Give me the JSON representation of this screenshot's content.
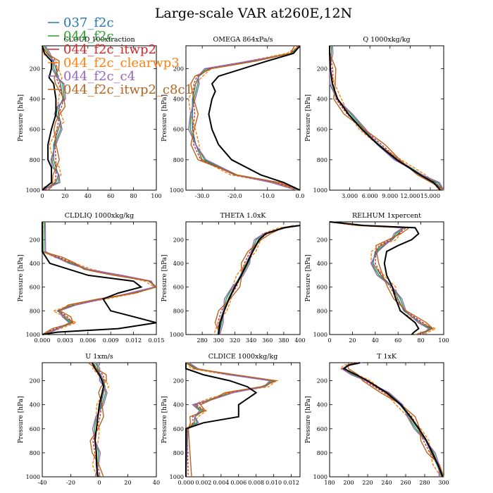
{
  "title": "Large-scale VAR at260E,12N",
  "legend": [
    {
      "label": "037_f2c",
      "color": "#1f77b4"
    },
    {
      "label": "044_f2c",
      "color": "#2ca02c"
    },
    {
      "label": "044_f2c_itwp2",
      "color": "#d62728"
    },
    {
      "label": "044_f2c_clearwp3",
      "color": "#ff7f0e"
    },
    {
      "label": "044_f2c_c4",
      "color": "#9467bd"
    },
    {
      "label": "044_f2c_itwp2_c8c1",
      "color": "#b5651d"
    }
  ],
  "obs_color": "#000000",
  "chart_data": [
    {
      "type": "line",
      "title": "CLOUD 100xfraction",
      "ylabel": "Pressure [hPa]",
      "xlim": [
        0,
        100
      ],
      "ylim": [
        1000,
        50
      ],
      "xticks": [
        {
          "v": 0,
          "t": "0"
        },
        {
          "v": 20,
          "t": "20"
        },
        {
          "v": 40,
          "t": "40"
        },
        {
          "v": 60,
          "t": "60"
        },
        {
          "v": 80,
          "t": "80"
        },
        {
          "v": 100,
          "t": "100"
        }
      ],
      "yticks": [
        200,
        400,
        600,
        800,
        1000
      ],
      "obs": {
        "p": [
          50,
          100,
          150,
          200,
          260,
          300,
          400,
          500,
          550,
          600,
          700,
          800,
          850,
          900,
          950,
          980,
          1000
        ],
        "x": [
          0,
          2,
          8,
          8,
          6,
          10,
          12,
          12,
          10,
          8,
          5,
          5,
          8,
          8,
          8,
          3,
          0
        ]
      },
      "series": [
        {
          "p": [
            50,
            100,
            150,
            200,
            260,
            300,
            400,
            450,
            500,
            550,
            600,
            700,
            800,
            850,
            900,
            950,
            980,
            1000
          ],
          "x": [
            0,
            4,
            10,
            12,
            14,
            16,
            18,
            15,
            14,
            16,
            14,
            10,
            10,
            12,
            14,
            12,
            5,
            0
          ]
        }
      ]
    },
    {
      "type": "line",
      "title": "OMEGA  864xPa/s",
      "ylabel": "Pressure [hPa]",
      "xlim": [
        -35,
        0
      ],
      "ylim": [
        1000,
        50
      ],
      "xticks": [
        {
          "v": -30,
          "t": "-30.0"
        },
        {
          "v": -20,
          "t": "-20.0"
        },
        {
          "v": -10,
          "t": "-10.0"
        },
        {
          "v": 0,
          "t": "0.0"
        }
      ],
      "yticks": [
        200,
        400,
        600,
        800,
        1000
      ],
      "obs": {
        "p": [
          50,
          100,
          150,
          250,
          300,
          350,
          400,
          500,
          600,
          700,
          800,
          900,
          950,
          1000
        ],
        "x": [
          0,
          -2,
          -10,
          -25,
          -27,
          -26,
          -27,
          -28,
          -27,
          -25,
          -21,
          -12,
          -5,
          0
        ]
      },
      "series": [
        {
          "p": [
            50,
            100,
            150,
            200,
            250,
            300,
            400,
            500,
            600,
            700,
            800,
            900,
            950,
            1000
          ],
          "x": [
            0,
            -3,
            -15,
            -28,
            -31,
            -32,
            -33,
            -33,
            -33,
            -32,
            -30,
            -20,
            -8,
            0
          ]
        }
      ]
    },
    {
      "type": "line",
      "title": "Q  1000xkg/kg",
      "ylabel": "Pressure [hPa]",
      "xlim": [
        0,
        17
      ],
      "ylim": [
        1000,
        50
      ],
      "xticks": [
        {
          "v": 3,
          "t": "3.000"
        },
        {
          "v": 6,
          "t": "6.000"
        },
        {
          "v": 9,
          "t": "9.000"
        },
        {
          "v": 12,
          "t": "12.000"
        },
        {
          "v": 15,
          "t": "15.000"
        }
      ],
      "yticks": [
        200,
        400,
        600,
        800,
        1000
      ],
      "obs": {
        "p": [
          50,
          100,
          200,
          300,
          400,
          500,
          600,
          700,
          800,
          900,
          950,
          1000
        ],
        "x": [
          0,
          0,
          0.1,
          0.4,
          1.2,
          2.8,
          4.8,
          7.2,
          10,
          13.5,
          15.5,
          16.5
        ]
      },
      "series": [
        {
          "p": [
            50,
            100,
            200,
            300,
            400,
            500,
            600,
            700,
            800,
            900,
            950,
            1000
          ],
          "x": [
            0,
            0,
            0.1,
            0.4,
            1.2,
            2.9,
            5.0,
            7.4,
            10.2,
            13.8,
            15.8,
            16.8
          ]
        }
      ]
    },
    {
      "type": "line",
      "title": "CLDLIQ  1000xkg/kg",
      "ylabel": "Pressure [hPa]",
      "xlim": [
        0,
        0.015
      ],
      "ylim": [
        1000,
        50
      ],
      "xticks": [
        {
          "v": 0,
          "t": "0.000"
        },
        {
          "v": 0.003,
          "t": "0.003"
        },
        {
          "v": 0.006,
          "t": "0.006"
        },
        {
          "v": 0.009,
          "t": "0.009"
        },
        {
          "v": 0.012,
          "t": "0.012"
        },
        {
          "v": 0.015,
          "t": "0.015"
        }
      ],
      "yticks": [
        200,
        400,
        600,
        800,
        1000
      ],
      "obs": {
        "p": [
          50,
          300,
          400,
          500,
          550,
          600,
          650,
          700,
          800,
          850,
          900,
          950,
          980,
          1000
        ],
        "x": [
          0,
          0,
          0.001,
          0.006,
          0.012,
          0.013,
          0.01,
          0.008,
          0.009,
          0.012,
          0.015,
          0.01,
          0.002,
          0
        ]
      },
      "series": [
        {
          "p": [
            50,
            300,
            350,
            400,
            450,
            500,
            550,
            600,
            650,
            700,
            750,
            800,
            850,
            900,
            950,
            1000
          ],
          "x": [
            0,
            0,
            0.002,
            0.004,
            0.006,
            0.01,
            0.014,
            0.015,
            0.012,
            0.008,
            0.004,
            0.002,
            0.003,
            0.004,
            0.002,
            0
          ]
        }
      ]
    },
    {
      "type": "line",
      "title": "THETA  1.0xK",
      "ylabel": "Pressure [hPa]",
      "xlim": [
        260,
        400
      ],
      "ylim": [
        1000,
        50
      ],
      "xticks": [
        {
          "v": 280,
          "t": "280"
        },
        {
          "v": 300,
          "t": "300"
        },
        {
          "v": 320,
          "t": "320"
        },
        {
          "v": 340,
          "t": "340"
        },
        {
          "v": 360,
          "t": "360"
        },
        {
          "v": 380,
          "t": "380"
        },
        {
          "v": 400,
          "t": "400"
        }
      ],
      "yticks": [
        200,
        400,
        600,
        800,
        1000
      ],
      "obs": {
        "p": [
          80,
          100,
          150,
          200,
          300,
          400,
          500,
          600,
          700,
          800,
          900,
          1000
        ],
        "x": [
          400,
          380,
          358,
          350,
          342,
          335,
          328,
          320,
          313,
          307,
          302,
          300
        ]
      },
      "series": [
        {
          "p": [
            80,
            100,
            150,
            200,
            300,
            400,
            500,
            600,
            700,
            800,
            900,
            1000
          ],
          "x": [
            399,
            379,
            357,
            349,
            341,
            334,
            327,
            319,
            312,
            306,
            301,
            299
          ]
        }
      ]
    },
    {
      "type": "line",
      "title": "RELHUM  1xpercent",
      "ylabel": "Pressure [hPa]",
      "xlim": [
        0,
        100
      ],
      "ylim": [
        1000,
        50
      ],
      "xticks": [
        {
          "v": 0,
          "t": "0"
        },
        {
          "v": 20,
          "t": "20"
        },
        {
          "v": 40,
          "t": "40"
        },
        {
          "v": 60,
          "t": "60"
        },
        {
          "v": 80,
          "t": "80"
        },
        {
          "v": 100,
          "t": "100"
        }
      ],
      "yticks": [
        200,
        400,
        600,
        800,
        1000
      ],
      "obs": {
        "p": [
          50,
          80,
          100,
          150,
          200,
          250,
          300,
          400,
          500,
          600,
          700,
          800,
          900,
          950,
          980,
          1000
        ],
        "x": [
          0,
          30,
          75,
          78,
          72,
          60,
          50,
          48,
          50,
          55,
          58,
          62,
          75,
          78,
          74,
          72
        ]
      },
      "series": [
        {
          "p": [
            50,
            80,
            100,
            150,
            200,
            250,
            300,
            400,
            500,
            600,
            700,
            800,
            900,
            950,
            1000
          ],
          "x": [
            0,
            25,
            65,
            60,
            55,
            45,
            40,
            38,
            45,
            55,
            60,
            65,
            80,
            90,
            80
          ]
        }
      ]
    },
    {
      "type": "line",
      "title": "U  1xm/s",
      "ylabel": "Pressure [hPa]",
      "xlim": [
        -40,
        40
      ],
      "ylim": [
        1000,
        50
      ],
      "xticks": [
        {
          "v": -40,
          "t": "-40"
        },
        {
          "v": -20,
          "t": "-20"
        },
        {
          "v": 0,
          "t": "0"
        },
        {
          "v": 20,
          "t": "20"
        },
        {
          "v": 40,
          "t": "40"
        }
      ],
      "yticks": [
        200,
        400,
        600,
        800,
        1000
      ],
      "obs": {
        "p": [
          50,
          100,
          150,
          200,
          250,
          300,
          400,
          500,
          600,
          700,
          800,
          900,
          1000
        ],
        "x": [
          -5,
          -3,
          0,
          2,
          3,
          2,
          0,
          -1,
          -2,
          -3,
          -2,
          -2,
          -1
        ]
      },
      "series": [
        {
          "p": [
            50,
            100,
            150,
            200,
            250,
            300,
            400,
            500,
            600,
            700,
            800,
            900,
            1000
          ],
          "x": [
            -4,
            -2,
            1,
            3,
            4,
            3,
            1,
            -1,
            -2,
            -3,
            -2,
            -2,
            -1
          ]
        }
      ]
    },
    {
      "type": "line",
      "title": "CLDICE  1000xkg/kg",
      "ylabel": "Pressure [hPa]",
      "xlim": [
        0,
        0.013
      ],
      "ylim": [
        1000,
        50
      ],
      "xticks": [
        {
          "v": 0,
          "t": "0.000"
        },
        {
          "v": 0.002,
          "t": "0.002"
        },
        {
          "v": 0.004,
          "t": "0.004"
        },
        {
          "v": 0.006,
          "t": "0.006"
        },
        {
          "v": 0.008,
          "t": "0.008"
        },
        {
          "v": 0.01,
          "t": "0.010"
        },
        {
          "v": 0.012,
          "t": "0.012"
        }
      ],
      "yticks": [
        200,
        400,
        600,
        800,
        1000
      ],
      "obs": {
        "p": [
          50,
          100,
          150,
          200,
          250,
          300,
          350,
          400,
          450,
          500,
          550,
          600,
          1000
        ],
        "x": [
          0,
          0,
          0.002,
          0.005,
          0.007,
          0.008,
          0.007,
          0.006,
          0.006,
          0.006,
          0.002,
          0,
          0
        ]
      },
      "series": [
        {
          "p": [
            50,
            100,
            150,
            200,
            250,
            300,
            350,
            400,
            450,
            500,
            550,
            600,
            1000
          ],
          "x": [
            0,
            0.001,
            0.005,
            0.01,
            0.009,
            0.005,
            0.003,
            0.001,
            0.002,
            0.001,
            0.001,
            0,
            0
          ]
        }
      ]
    },
    {
      "type": "line",
      "title": "T  1xK",
      "ylabel": "Pressure [hPa]",
      "xlim": [
        180,
        300
      ],
      "ylim": [
        1000,
        50
      ],
      "xticks": [
        {
          "v": 180,
          "t": "180"
        },
        {
          "v": 200,
          "t": "200"
        },
        {
          "v": 220,
          "t": "220"
        },
        {
          "v": 240,
          "t": "240"
        },
        {
          "v": 260,
          "t": "260"
        },
        {
          "v": 280,
          "t": "280"
        },
        {
          "v": 300,
          "t": "300"
        }
      ],
      "yticks": [
        200,
        400,
        600,
        800,
        1000
      ],
      "obs": {
        "p": [
          50,
          70,
          100,
          150,
          200,
          300,
          400,
          500,
          600,
          700,
          800,
          900,
          1000
        ],
        "x": [
          212,
          200,
          195,
          208,
          220,
          240,
          255,
          265,
          274,
          282,
          288,
          294,
          299
        ]
      },
      "series": [
        {
          "p": [
            50,
            70,
            100,
            150,
            200,
            300,
            400,
            500,
            600,
            700,
            800,
            900,
            1000
          ],
          "x": [
            211,
            199,
            194,
            207,
            219,
            239,
            254,
            264,
            273,
            281,
            287,
            293,
            298
          ]
        }
      ]
    }
  ]
}
